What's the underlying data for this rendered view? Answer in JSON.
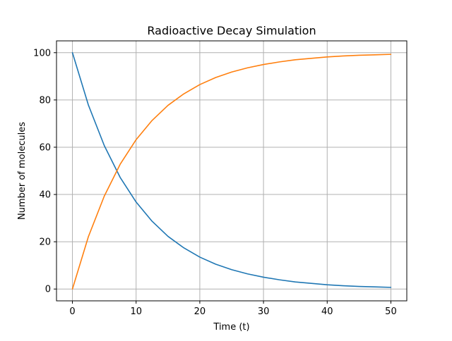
{
  "chart_data": {
    "type": "line",
    "title": "Radioactive Decay Simulation",
    "xlabel": "Time (t)",
    "ylabel": "Number of molecules",
    "xlim": [
      -2.5,
      52.5
    ],
    "ylim": [
      -5,
      105
    ],
    "xticks": [
      0,
      10,
      20,
      30,
      40,
      50
    ],
    "yticks": [
      0,
      20,
      40,
      60,
      80,
      100
    ],
    "xtick_labels": [
      "0",
      "10",
      "20",
      "30",
      "40",
      "50"
    ],
    "ytick_labels": [
      "0",
      "20",
      "40",
      "60",
      "80",
      "100"
    ],
    "grid": true,
    "colors": {
      "series_1": "#1f77b4",
      "series_2": "#ff7f0e",
      "grid": "#b0b0b0"
    },
    "x": [
      0,
      2.5,
      5,
      7.5,
      10,
      12.5,
      15,
      17.5,
      20,
      22.5,
      25,
      27.5,
      30,
      32.5,
      35,
      37.5,
      40,
      42.5,
      45,
      47.5,
      50
    ],
    "series": [
      {
        "values": [
          100,
          77.9,
          60.7,
          47.2,
          36.8,
          28.7,
          22.3,
          17.4,
          13.5,
          10.5,
          8.2,
          6.4,
          5.0,
          3.9,
          3.0,
          2.4,
          1.8,
          1.4,
          1.1,
          0.9,
          0.7
        ]
      },
      {
        "values": [
          0,
          22.1,
          39.3,
          52.8,
          63.2,
          71.3,
          77.7,
          82.6,
          86.5,
          89.5,
          91.8,
          93.6,
          95.0,
          96.1,
          97.0,
          97.6,
          98.2,
          98.6,
          98.9,
          99.1,
          99.3
        ]
      }
    ]
  }
}
